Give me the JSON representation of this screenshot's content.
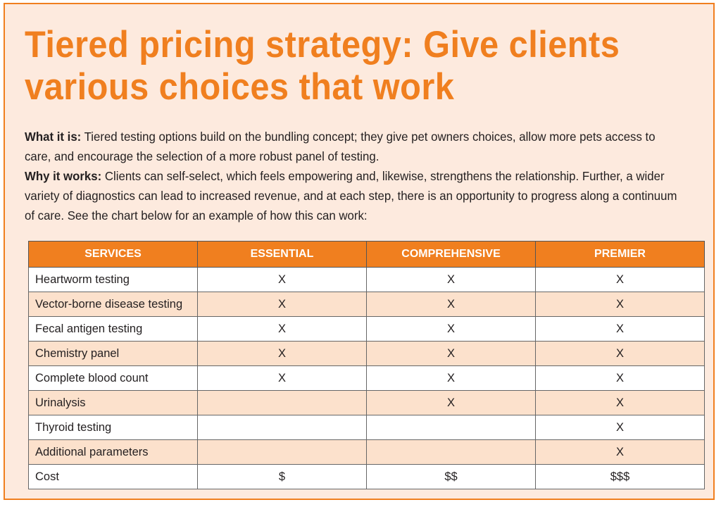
{
  "title": "Tiered pricing strategy: Give clients various choices that work",
  "what_it_is": {
    "label": "What it is:",
    "text": " Tiered testing options build on the bundling concept; they give pet owners choices, allow more pets access to care, and encourage the selection of a more robust panel of testing."
  },
  "why_it_works": {
    "label": "Why it works:",
    "text": " Clients can self-select, which feels empowering and, likewise, strengthens the relationship. Further, a wider variety of diagnostics can lead to increased revenue, and at each step, there is an opportunity to progress along a continuum of care. See the chart below for an example of how this can work:"
  },
  "table": {
    "headers": [
      "SERVICES",
      "ESSENTIAL",
      "COMPREHENSIVE",
      "PREMIER"
    ],
    "rows": [
      [
        "Heartworm testing",
        "X",
        "X",
        "X"
      ],
      [
        "Vector-borne disease testing",
        "X",
        "X",
        "X"
      ],
      [
        "Fecal antigen testing",
        "X",
        "X",
        "X"
      ],
      [
        "Chemistry panel",
        "X",
        "X",
        "X"
      ],
      [
        "Complete blood count",
        "X",
        "X",
        "X"
      ],
      [
        "Urinalysis",
        "",
        "X",
        "X"
      ],
      [
        "Thyroid testing",
        "",
        "",
        "X"
      ],
      [
        "Additional parameters",
        "",
        "",
        "X"
      ],
      [
        "Cost",
        "$",
        "$$",
        "$$$"
      ]
    ]
  },
  "colors": {
    "accent": "#f07f1f",
    "panel_background": "#fdeade",
    "row_stripe": "#fce1cc"
  }
}
